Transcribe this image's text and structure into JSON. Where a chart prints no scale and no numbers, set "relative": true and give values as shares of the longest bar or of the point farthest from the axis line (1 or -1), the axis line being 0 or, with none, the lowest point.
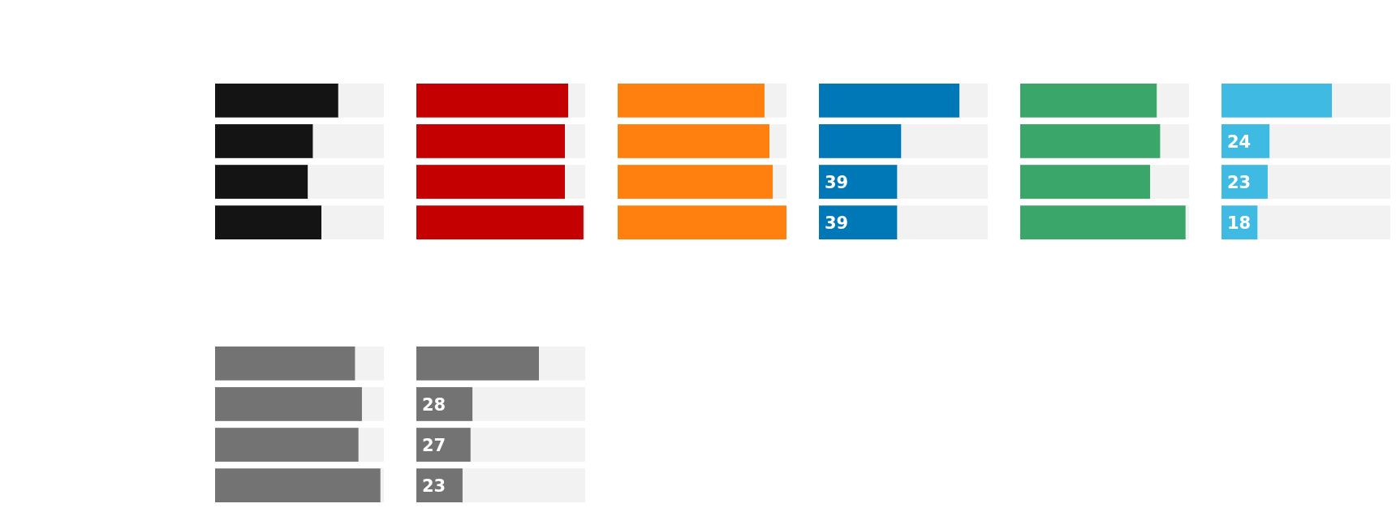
{
  "chart_data": [
    {
      "type": "bar",
      "orientation": "horizontal",
      "stacked": true,
      "relative": true,
      "categories": [
        null,
        null,
        null,
        null
      ],
      "series": [
        {
          "color": "#141414",
          "values": [
            0.73,
            0.58,
            0.55,
            0.63
          ]
        },
        {
          "color": "#f2f2f2",
          "values": [
            0.27,
            0.42,
            0.45,
            0.37
          ]
        }
      ]
    },
    {
      "type": "bar",
      "orientation": "horizontal",
      "stacked": true,
      "relative": true,
      "categories": [
        null,
        null,
        null,
        null
      ],
      "series": [
        {
          "color": "#c40000",
          "values": [
            0.9,
            0.88,
            0.88,
            0.99
          ]
        },
        {
          "color": "#f2f2f2",
          "values": [
            0.1,
            0.12,
            0.12,
            0.01
          ]
        }
      ]
    },
    {
      "type": "bar",
      "orientation": "horizontal",
      "stacked": true,
      "relative": true,
      "categories": [
        null,
        null,
        null,
        null
      ],
      "series": [
        {
          "color": "#ff7f0f",
          "values": [
            0.87,
            0.9,
            0.92,
            1
          ]
        },
        {
          "color": "#f2f2f2",
          "values": [
            0.13,
            0.1,
            0.08,
            0
          ]
        }
      ]
    },
    {
      "type": "bar",
      "orientation": "horizontal",
      "stacked": true,
      "categories": [
        null,
        null,
        null,
        null
      ],
      "xlim": [
        0,
        84
      ],
      "series": [
        {
          "color": "#0077b6",
          "values": [
            70,
            41,
            39,
            39
          ],
          "value_labels": [
            null,
            null,
            "39",
            "39"
          ]
        },
        {
          "color": "#f2f2f2",
          "values": [
            14,
            43,
            45,
            45
          ]
        }
      ]
    },
    {
      "type": "bar",
      "orientation": "horizontal",
      "stacked": true,
      "relative": true,
      "categories": [
        null,
        null,
        null,
        null
      ],
      "series": [
        {
          "color": "#3aa66a",
          "values": [
            0.81,
            0.83,
            0.77,
            0.98
          ]
        },
        {
          "color": "#f2f2f2",
          "values": [
            0.19,
            0.17,
            0.23,
            0.02
          ]
        }
      ]
    },
    {
      "type": "bar",
      "orientation": "horizontal",
      "stacked": true,
      "categories": [
        null,
        null,
        null,
        null
      ],
      "xlim": [
        0,
        84
      ],
      "series": [
        {
          "color": "#3fbbe3",
          "values": [
            55,
            24,
            23,
            18
          ],
          "value_labels": [
            null,
            "24",
            "23",
            "18"
          ]
        },
        {
          "color": "#f2f2f2",
          "values": [
            29,
            60,
            61,
            66
          ]
        }
      ]
    },
    {
      "type": "bar",
      "orientation": "horizontal",
      "stacked": true,
      "relative": true,
      "categories": [
        null,
        null,
        null,
        null
      ],
      "series": [
        {
          "color": "#737373",
          "values": [
            0.83,
            0.87,
            0.85,
            0.98
          ]
        },
        {
          "color": "#f2f2f2",
          "values": [
            0.17,
            0.13,
            0.15,
            0.02
          ]
        }
      ]
    },
    {
      "type": "bar",
      "orientation": "horizontal",
      "stacked": true,
      "categories": [
        null,
        null,
        null,
        null
      ],
      "xlim": [
        0,
        84
      ],
      "series": [
        {
          "color": "#737373",
          "values": [
            61,
            28,
            27,
            23
          ],
          "value_labels": [
            null,
            "28",
            "27",
            "23"
          ]
        },
        {
          "color": "#f2f2f2",
          "values": [
            23,
            56,
            57,
            61
          ]
        }
      ]
    }
  ]
}
